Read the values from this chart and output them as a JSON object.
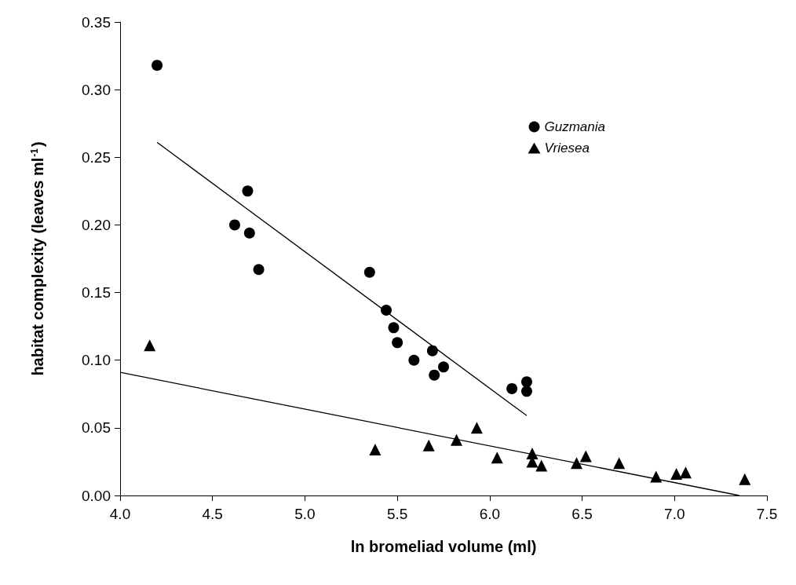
{
  "chart_data": {
    "type": "scatter",
    "xlabel": "ln bromeliad volume (ml)",
    "ylabel": "habitat complexity (leaves ml$^{-1}$)",
    "xlim": [
      4.0,
      7.5
    ],
    "xticks": [
      {
        "value": 4.0,
        "label": "4.0"
      },
      {
        "value": 4.5,
        "label": "4.5"
      },
      {
        "value": 5.0,
        "label": "5.0"
      },
      {
        "value": 5.5,
        "label": "5.5"
      },
      {
        "value": 6.0,
        "label": "6.0"
      },
      {
        "value": 6.5,
        "label": "6.5"
      },
      {
        "value": 7.0,
        "label": "7.0"
      },
      {
        "value": 7.5,
        "label": "7.5"
      }
    ],
    "ylim": [
      0,
      0.35
    ],
    "yticks": [
      {
        "value": 0,
        "label": "0.00"
      },
      {
        "value": 0.05,
        "label": "0.05"
      },
      {
        "value": 0.1,
        "label": "0.10"
      },
      {
        "value": 0.15,
        "label": "0.15"
      },
      {
        "value": 0.2,
        "label": "0.20"
      },
      {
        "value": 0.25,
        "label": "0.25"
      },
      {
        "value": 0.3,
        "label": "0.30"
      },
      {
        "value": 0.35,
        "label": "0.35"
      }
    ],
    "grid": false,
    "legend": "top right",
    "series": [
      {
        "name": "Guzmania",
        "marker": "circle",
        "color": "#000000",
        "x": [
          4.2,
          4.69,
          4.62,
          4.7,
          4.75,
          5.35,
          5.44,
          5.48,
          5.5,
          5.59,
          5.69,
          5.75,
          5.7,
          6.12,
          6.2,
          6.2
        ],
        "values": [
          0.318,
          0.225,
          0.2,
          0.194,
          0.167,
          0.165,
          0.137,
          0.124,
          0.113,
          0.1,
          0.107,
          0.095,
          0.089,
          0.079,
          0.084,
          0.077
        ]
      },
      {
        "name": "Vriesea",
        "marker": "triangle",
        "color": "#000000",
        "x": [
          4.16,
          5.38,
          5.67,
          5.82,
          5.93,
          6.04,
          6.23,
          6.23,
          6.28,
          6.47,
          6.52,
          6.7,
          6.9,
          7.01,
          7.06,
          7.38
        ],
        "values": [
          0.111,
          0.034,
          0.037,
          0.041,
          0.05,
          0.028,
          0.031,
          0.025,
          0.022,
          0.024,
          0.029,
          0.024,
          0.014,
          0.016,
          0.017,
          0.012
        ]
      },
      {
        "type": "line",
        "color": "#000000",
        "x": [
          4.2,
          6.2
        ],
        "values": [
          0.261,
          0.059
        ]
      },
      {
        "type": "line",
        "color": "#000000",
        "x": [
          4.0,
          7.35
        ],
        "values": [
          0.091,
          0.0
        ]
      }
    ]
  }
}
